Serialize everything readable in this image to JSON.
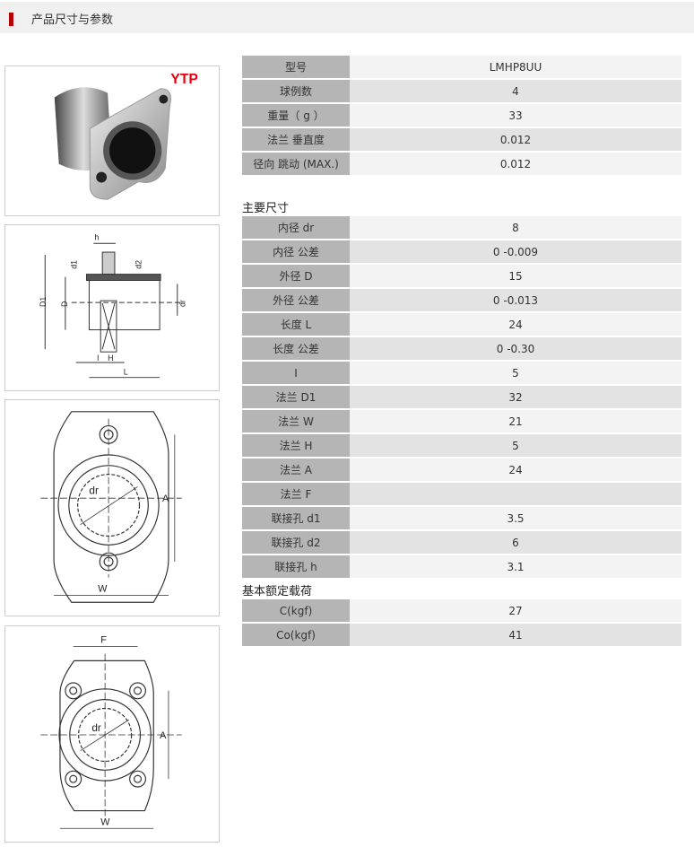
{
  "header": {
    "title": "产品尺寸与参数"
  },
  "brand": {
    "logo_text": "YTP",
    "color": "#e60012"
  },
  "accent_color": "#b40000",
  "spec_basic": [
    {
      "label": "型号",
      "value": "LMHP8UU"
    },
    {
      "label": "球例数",
      "value": "4"
    },
    {
      "label": "重量（ g ）",
      "value": "33"
    },
    {
      "label": "法兰 垂直度",
      "value": "0.012"
    },
    {
      "label": "径向 跳动 (MAX.)",
      "value": "0.012"
    }
  ],
  "section_main": {
    "title": "主要尺寸"
  },
  "spec_main": [
    {
      "label": "内径 dr",
      "value": "8"
    },
    {
      "label": "内径 公差",
      "value": "0 -0.009"
    },
    {
      "label": "外径 D",
      "value": "15"
    },
    {
      "label": "外径 公差",
      "value": "0 -0.013"
    },
    {
      "label": "长度 L",
      "value": "24"
    },
    {
      "label": "长度 公差",
      "value": "0 -0.30"
    },
    {
      "label": "I",
      "value": "5"
    },
    {
      "label": "法兰 D1",
      "value": "32"
    },
    {
      "label": "法兰 W",
      "value": "21"
    },
    {
      "label": "法兰 H",
      "value": "5"
    },
    {
      "label": "法兰 A",
      "value": "24"
    },
    {
      "label": "法兰 F",
      "value": ""
    },
    {
      "label": "联接孔 d1",
      "value": "3.5"
    },
    {
      "label": "联接孔 d2",
      "value": "6"
    },
    {
      "label": "联接孔 h",
      "value": "3.1"
    }
  ],
  "section_load": {
    "title": "基本额定载荷"
  },
  "spec_load": [
    {
      "label": "C(kgf)",
      "value": "27"
    },
    {
      "label": "Co(kgf)",
      "value": "41"
    }
  ],
  "diagram_side": {
    "h": "h",
    "d1": "d1",
    "d2": "d2",
    "D1": "D1",
    "D": "D",
    "dr": "dr",
    "l": "l",
    "H": "H",
    "L": "L"
  },
  "diagram_front2": {
    "dr": "dr",
    "A": "A",
    "W": "W"
  },
  "diagram_front4": {
    "F": "F",
    "dr": "dr",
    "A": "A",
    "W": "W"
  }
}
